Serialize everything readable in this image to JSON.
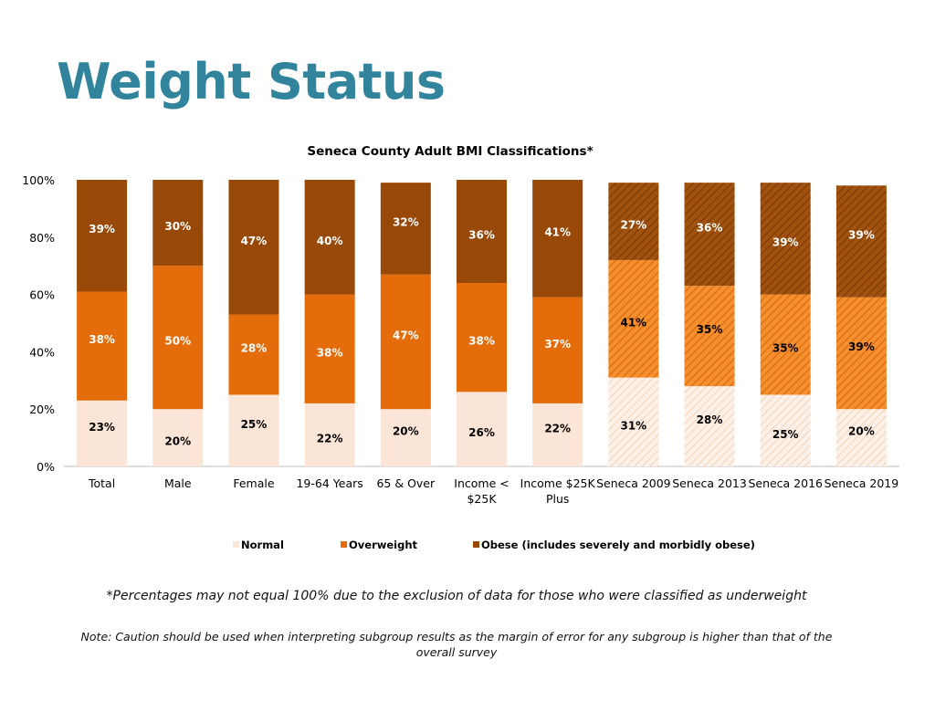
{
  "title": "Weight Status",
  "footnote": "*Percentages may not equal 100% due to the exclusion of data for those who were classified as underweight",
  "note": "Note: Caution should be used when interpreting subgroup results as the margin of error for any subgroup is higher than that of the overall survey",
  "colors": {
    "normal": "#fbe5d6",
    "overweight": "#e46c0a",
    "obese": "#984807",
    "title": "#31849b"
  },
  "chart_data": {
    "type": "bar",
    "stacked": true,
    "title": "Seneca County Adult BMI Classifications*",
    "categories": [
      "Total",
      "Male",
      "Female",
      "19-64 Years",
      "65 & Over",
      "Income <\n$25K",
      "Income $25K\nPlus",
      "Seneca 2009",
      "Seneca 2013",
      "Seneca 2016",
      "Seneca 2019"
    ],
    "hatched_categories": [
      "Seneca 2009",
      "Seneca 2013",
      "Seneca 2016",
      "Seneca 2019"
    ],
    "series": [
      {
        "name": "Normal",
        "values": [
          23,
          20,
          25,
          22,
          20,
          26,
          22,
          31,
          28,
          25,
          20
        ]
      },
      {
        "name": "Overweight",
        "values": [
          38,
          50,
          28,
          38,
          47,
          38,
          37,
          41,
          35,
          35,
          39
        ]
      },
      {
        "name": "Obese (includes severely and morbidly obese)",
        "values": [
          39,
          30,
          47,
          40,
          32,
          36,
          41,
          27,
          36,
          39,
          39
        ]
      }
    ],
    "ylim": [
      0,
      100
    ],
    "yticks": [
      "0%",
      "20%",
      "40%",
      "60%",
      "80%",
      "100%"
    ],
    "legend_position": "bottom",
    "grid": false
  }
}
